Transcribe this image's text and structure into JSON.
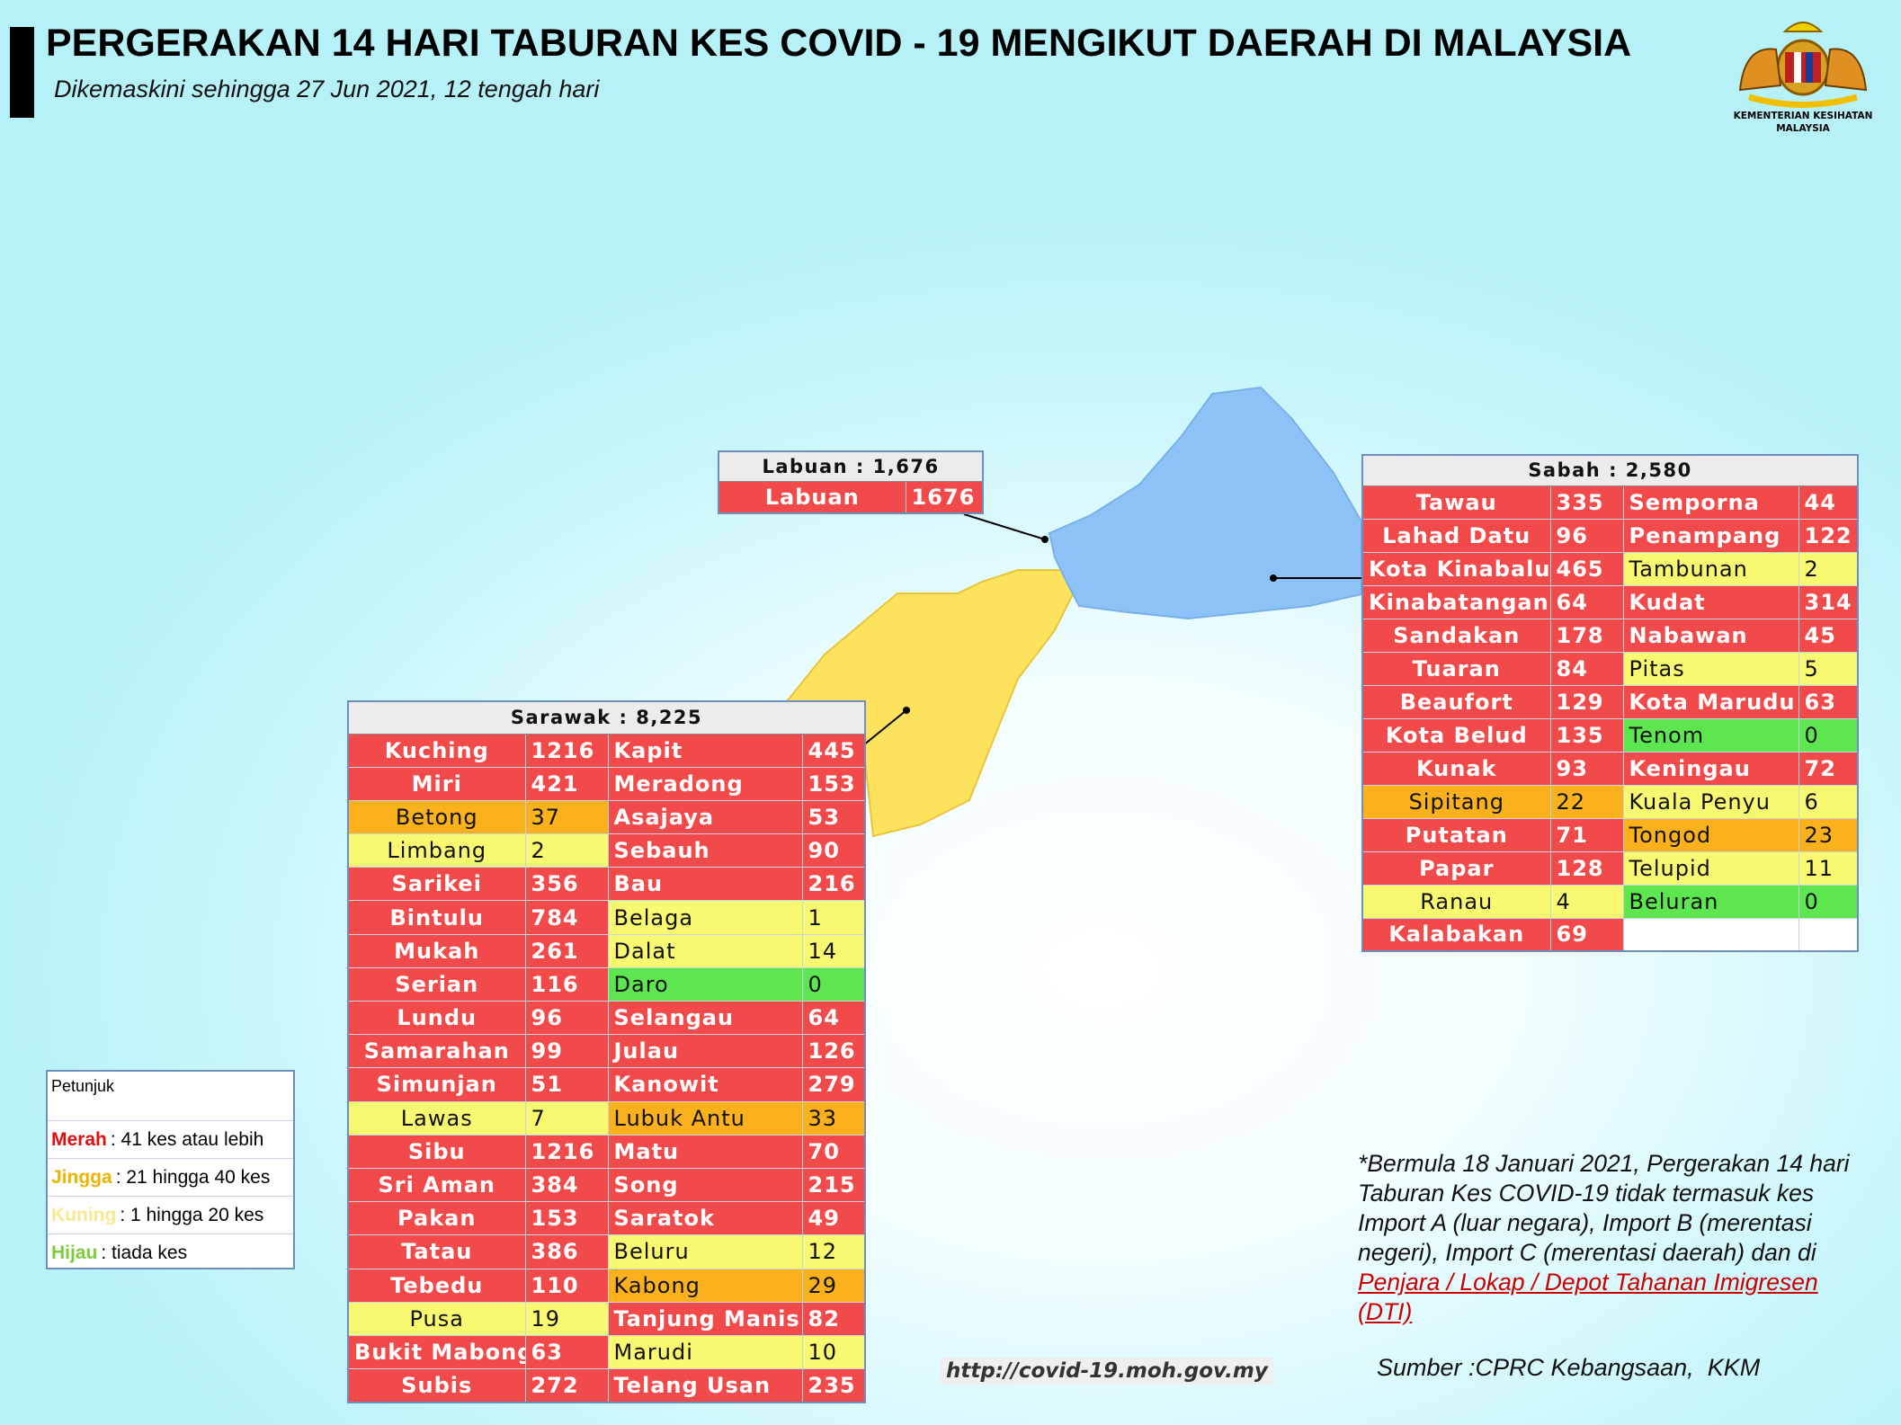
{
  "header": {
    "title": "PERGERAKAN 14 HARI TABURAN KES COVID - 19 MENGIKUT DAERAH DI MALAYSIA",
    "subtitle": "Dikemaskini sehingga 27 Jun 2021, 12 tengah hari",
    "logo_text": [
      "KEMENTERIAN KESIHATAN",
      "MALAYSIA"
    ]
  },
  "labuan": {
    "title": "Labuan : 1,676",
    "rows": [
      [
        {
          "name": "Labuan",
          "cases": 1676,
          "color": "#f24a4a"
        }
      ]
    ]
  },
  "sabah": {
    "title": "Sabah : 2,580",
    "rows": [
      [
        {
          "name": "Tawau",
          "cases": 335,
          "color": "#f24a4a"
        },
        {
          "name": "Semporna",
          "cases": 44,
          "color": "#f24a4a"
        }
      ],
      [
        {
          "name": "Lahad Datu",
          "cases": 96,
          "color": "#f24a4a"
        },
        {
          "name": "Penampang",
          "cases": 122,
          "color": "#f24a4a"
        }
      ],
      [
        {
          "name": "Kota Kinabalu",
          "cases": 465,
          "color": "#f24a4a"
        },
        {
          "name": "Tambunan",
          "cases": 2,
          "color": "#f9f871"
        }
      ],
      [
        {
          "name": "Kinabatangan",
          "cases": 64,
          "color": "#f24a4a"
        },
        {
          "name": "Kudat",
          "cases": 314,
          "color": "#f24a4a"
        }
      ],
      [
        {
          "name": "Sandakan",
          "cases": 178,
          "color": "#f24a4a"
        },
        {
          "name": "Nabawan",
          "cases": 45,
          "color": "#f24a4a"
        }
      ],
      [
        {
          "name": "Tuaran",
          "cases": 84,
          "color": "#f24a4a"
        },
        {
          "name": "Pitas",
          "cases": 5,
          "color": "#f9f871"
        }
      ],
      [
        {
          "name": "Beaufort",
          "cases": 129,
          "color": "#f24a4a"
        },
        {
          "name": "Kota Marudu",
          "cases": 63,
          "color": "#f24a4a"
        }
      ],
      [
        {
          "name": "Kota Belud",
          "cases": 135,
          "color": "#f24a4a"
        },
        {
          "name": "Tenom",
          "cases": 0,
          "color": "#5de650"
        }
      ],
      [
        {
          "name": "Kunak",
          "cases": 93,
          "color": "#f24a4a"
        },
        {
          "name": "Keningau",
          "cases": 72,
          "color": "#f24a4a"
        }
      ],
      [
        {
          "name": "Sipitang",
          "cases": 22,
          "color": "#fbb11b"
        },
        {
          "name": "Kuala Penyu",
          "cases": 6,
          "color": "#f9f871"
        }
      ],
      [
        {
          "name": "Putatan",
          "cases": 71,
          "color": "#f24a4a"
        },
        {
          "name": "Tongod",
          "cases": 23,
          "color": "#fbb11b"
        }
      ],
      [
        {
          "name": "Papar",
          "cases": 128,
          "color": "#f24a4a"
        },
        {
          "name": "Telupid",
          "cases": 11,
          "color": "#f9f871"
        }
      ],
      [
        {
          "name": "Ranau",
          "cases": 4,
          "color": "#f9f871"
        },
        {
          "name": "Beluran",
          "cases": 0,
          "color": "#5de650"
        }
      ],
      [
        {
          "name": "Kalabakan",
          "cases": 69,
          "color": "#f24a4a"
        }
      ]
    ]
  },
  "sarawak": {
    "title": "Sarawak : 8,225",
    "rows": [
      [
        {
          "name": "Kuching",
          "cases": 1216,
          "color": "#f24a4a"
        },
        {
          "name": "Kapit",
          "cases": 445,
          "color": "#f24a4a"
        }
      ],
      [
        {
          "name": "Miri",
          "cases": 421,
          "color": "#f24a4a"
        },
        {
          "name": "Meradong",
          "cases": 153,
          "color": "#f24a4a"
        }
      ],
      [
        {
          "name": "Betong",
          "cases": 37,
          "color": "#fbb11b"
        },
        {
          "name": "Asajaya",
          "cases": 53,
          "color": "#f24a4a"
        }
      ],
      [
        {
          "name": "Limbang",
          "cases": 2,
          "color": "#f9f871"
        },
        {
          "name": "Sebauh",
          "cases": 90,
          "color": "#f24a4a"
        }
      ],
      [
        {
          "name": "Sarikei",
          "cases": 356,
          "color": "#f24a4a"
        },
        {
          "name": "Bau",
          "cases": 216,
          "color": "#f24a4a"
        }
      ],
      [
        {
          "name": "Bintulu",
          "cases": 784,
          "color": "#f24a4a"
        },
        {
          "name": "Belaga",
          "cases": 1,
          "color": "#f9f871"
        }
      ],
      [
        {
          "name": "Mukah",
          "cases": 261,
          "color": "#f24a4a"
        },
        {
          "name": "Dalat",
          "cases": 14,
          "color": "#f9f871"
        }
      ],
      [
        {
          "name": "Serian",
          "cases": 116,
          "color": "#f24a4a"
        },
        {
          "name": "Daro",
          "cases": 0,
          "color": "#5de650"
        }
      ],
      [
        {
          "name": "Lundu",
          "cases": 96,
          "color": "#f24a4a"
        },
        {
          "name": "Selangau",
          "cases": 64,
          "color": "#f24a4a"
        }
      ],
      [
        {
          "name": "Samarahan",
          "cases": 99,
          "color": "#f24a4a"
        },
        {
          "name": "Julau",
          "cases": 126,
          "color": "#f24a4a"
        }
      ],
      [
        {
          "name": "Simunjan",
          "cases": 51,
          "color": "#f24a4a"
        },
        {
          "name": "Kanowit",
          "cases": 279,
          "color": "#f24a4a"
        }
      ],
      [
        {
          "name": "Lawas",
          "cases": 7,
          "color": "#f9f871"
        },
        {
          "name": "Lubuk Antu",
          "cases": 33,
          "color": "#fbb11b"
        }
      ],
      [
        {
          "name": "Sibu",
          "cases": 1216,
          "color": "#f24a4a"
        },
        {
          "name": "Matu",
          "cases": 70,
          "color": "#f24a4a"
        }
      ],
      [
        {
          "name": "Sri Aman",
          "cases": 384,
          "color": "#f24a4a"
        },
        {
          "name": "Song",
          "cases": 215,
          "color": "#f24a4a"
        }
      ],
      [
        {
          "name": "Pakan",
          "cases": 153,
          "color": "#f24a4a"
        },
        {
          "name": "Saratok",
          "cases": 49,
          "color": "#f24a4a"
        }
      ],
      [
        {
          "name": "Tatau",
          "cases": 386,
          "color": "#f24a4a"
        },
        {
          "name": "Beluru",
          "cases": 12,
          "color": "#f9f871"
        }
      ],
      [
        {
          "name": "Tebedu",
          "cases": 110,
          "color": "#f24a4a"
        },
        {
          "name": "Kabong",
          "cases": 29,
          "color": "#fbb11b"
        }
      ],
      [
        {
          "name": "Pusa",
          "cases": 19,
          "color": "#f9f871"
        },
        {
          "name": "Tanjung Manis",
          "cases": 82,
          "color": "#f24a4a"
        }
      ],
      [
        {
          "name": "Bukit Mabong",
          "cases": 63,
          "color": "#f24a4a"
        },
        {
          "name": "Marudi",
          "cases": 10,
          "color": "#f9f871"
        }
      ],
      [
        {
          "name": "Subis",
          "cases": 272,
          "color": "#f24a4a"
        },
        {
          "name": "Telang Usan",
          "cases": 235,
          "color": "#f24a4a"
        }
      ]
    ]
  },
  "legend": {
    "title": "Petunjuk",
    "items": [
      {
        "word": "Merah",
        "text": ": 41 kes atau lebih",
        "color": "#e01010"
      },
      {
        "word": "Jingga",
        "text": ": 21 hingga 40 kes",
        "color": "#f0b400"
      },
      {
        "word": "Kuning",
        "text": ": 1 hingga 20 kes",
        "color": "#f8e890"
      },
      {
        "word": "Hijau",
        "text": ": tiada kes",
        "color": "#7ccc3c"
      }
    ]
  },
  "note": {
    "lines": [
      "*Bermula 18 Januari 2021, Pergerakan 14 hari",
      "Taburan Kes COVID-19 tidak termasuk kes",
      "Import A (luar negara), Import B (merentasi",
      "negeri), Import C (merentasi daerah) dan di"
    ],
    "link_lines": [
      "Penjara / Lokap / Depot Tahanan Imigresen",
      "(DTI)"
    ]
  },
  "url": "http://covid-19.moh.gov.my",
  "source": "Sumber :CPRC Kebangsaan,  KKM"
}
